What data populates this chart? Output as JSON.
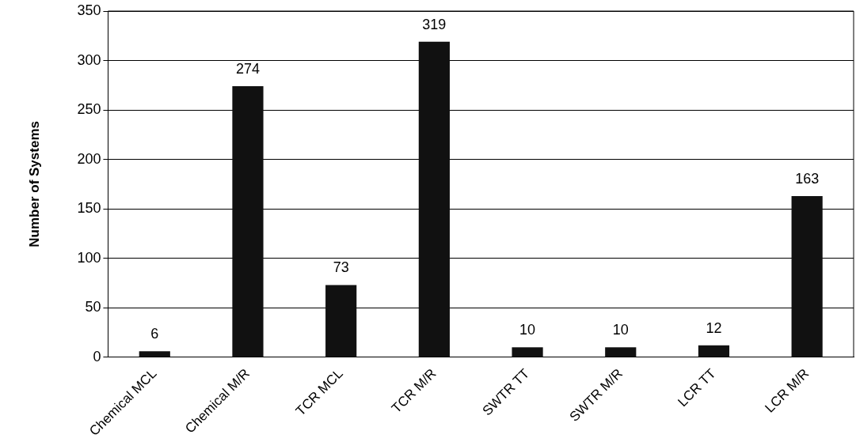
{
  "chart_data": {
    "type": "bar",
    "ylabel": "Number of Systems",
    "categories": [
      "Chemical MCL",
      "Chemical M/R",
      "TCR MCL",
      "TCR M/R",
      "SWTR TT",
      "SWTR M/R",
      "LCR TT",
      "LCR M/R"
    ],
    "values": [
      6,
      274,
      73,
      319,
      10,
      10,
      12,
      163
    ],
    "color": "#111111",
    "ylim": [
      0,
      350
    ],
    "yticks": [
      0,
      50,
      100,
      150,
      200,
      250,
      300,
      350
    ],
    "grid": "y",
    "data_labels": true,
    "legend": false
  }
}
